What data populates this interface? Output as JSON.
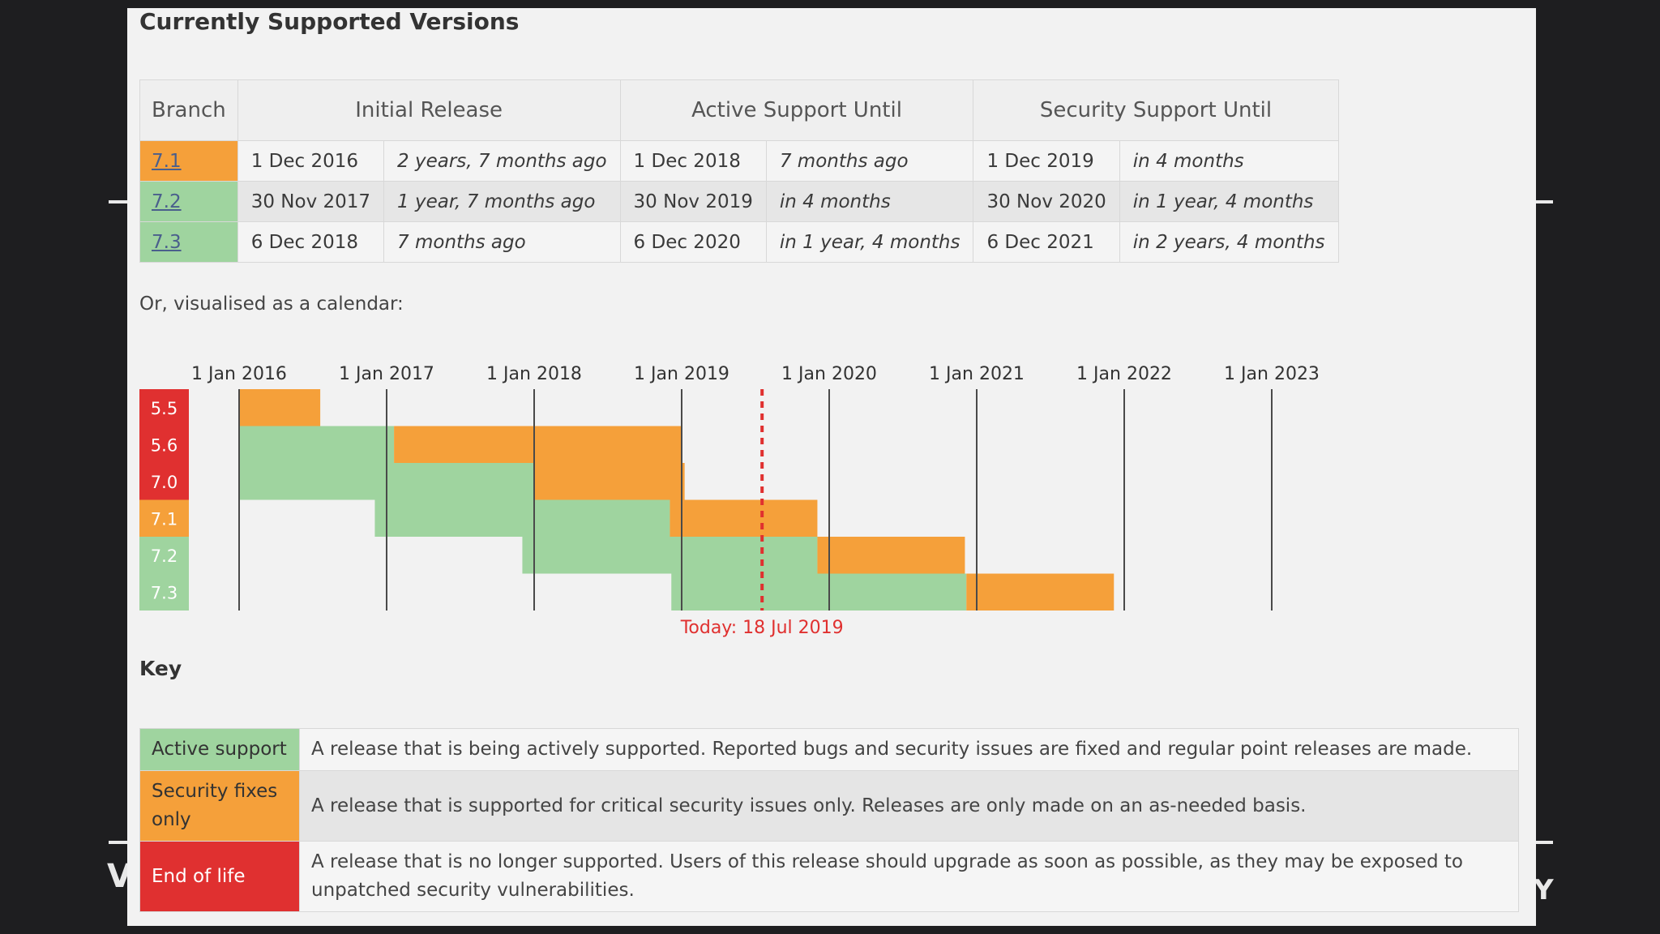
{
  "colors": {
    "active": "#9fd49f",
    "security": "#f5a03a",
    "eol": "#e03030",
    "today": "#e0302f"
  },
  "page_title": "Currently Supported Versions",
  "table": {
    "headers": [
      "Branch",
      "Initial Release",
      "Active Support Until",
      "Security Support Until"
    ],
    "rows": [
      {
        "branch": "7.1",
        "status": "security",
        "initial": "1 Dec 2016",
        "initial_rel": "2 years, 7 months ago",
        "active": "1 Dec 2018",
        "active_rel": "7 months ago",
        "security": "1 Dec 2019",
        "security_rel": "in 4 months"
      },
      {
        "branch": "7.2",
        "status": "active",
        "initial": "30 Nov 2017",
        "initial_rel": "1 year, 7 months ago",
        "active": "30 Nov 2019",
        "active_rel": "in 4 months",
        "security": "30 Nov 2020",
        "security_rel": "in 1 year, 4 months"
      },
      {
        "branch": "7.3",
        "status": "active",
        "initial": "6 Dec 2018",
        "initial_rel": "7 months ago",
        "active": "6 Dec 2020",
        "active_rel": "in 1 year, 4 months",
        "security": "6 Dec 2021",
        "security_rel": "in 2 years, 4 months"
      }
    ]
  },
  "calendar_intro": "Or, visualised as a calendar:",
  "calendar": {
    "year_labels": [
      "1 Jan 2016",
      "1 Jan 2017",
      "1 Jan 2018",
      "1 Jan 2019",
      "1 Jan 2020",
      "1 Jan 2021",
      "1 Jan 2022",
      "1 Jan 2023"
    ],
    "today_label": "Today: 18 Jul 2019",
    "today_year": 2019.545,
    "branches": [
      {
        "name": "5.5",
        "label_status": "eol",
        "active": null,
        "security": [
          2016.0,
          2016.55
        ]
      },
      {
        "name": "5.6",
        "label_status": "eol",
        "active": [
          2016.0,
          2017.05
        ],
        "security": [
          2017.05,
          2019.0
        ]
      },
      {
        "name": "7.0",
        "label_status": "eol",
        "active": [
          2016.0,
          2018.0
        ],
        "security": [
          2018.0,
          2019.02
        ]
      },
      {
        "name": "7.1",
        "label_status": "security",
        "active": [
          2016.92,
          2018.92
        ],
        "security": [
          2018.92,
          2019.92
        ]
      },
      {
        "name": "7.2",
        "label_status": "active",
        "active": [
          2017.92,
          2019.92
        ],
        "security": [
          2019.92,
          2020.92
        ]
      },
      {
        "name": "7.3",
        "label_status": "active",
        "active": [
          2018.93,
          2020.93
        ],
        "security": [
          2020.93,
          2021.93
        ]
      }
    ]
  },
  "key": {
    "title": "Key",
    "items": [
      {
        "label": "Active support",
        "status": "active",
        "text": "A release that is being actively supported. Reported bugs and security issues are fixed and regular point releases are made."
      },
      {
        "label": "Security fixes only",
        "status": "security",
        "text": "A release that is supported for critical security issues only. Releases are only made on an as-needed basis."
      },
      {
        "label": "End of life",
        "status": "eol",
        "text": "A release that is no longer supported. Users of this release should upgrade as soon as possible, as they may be exposed to unpatched security vulnerabilities."
      }
    ]
  }
}
